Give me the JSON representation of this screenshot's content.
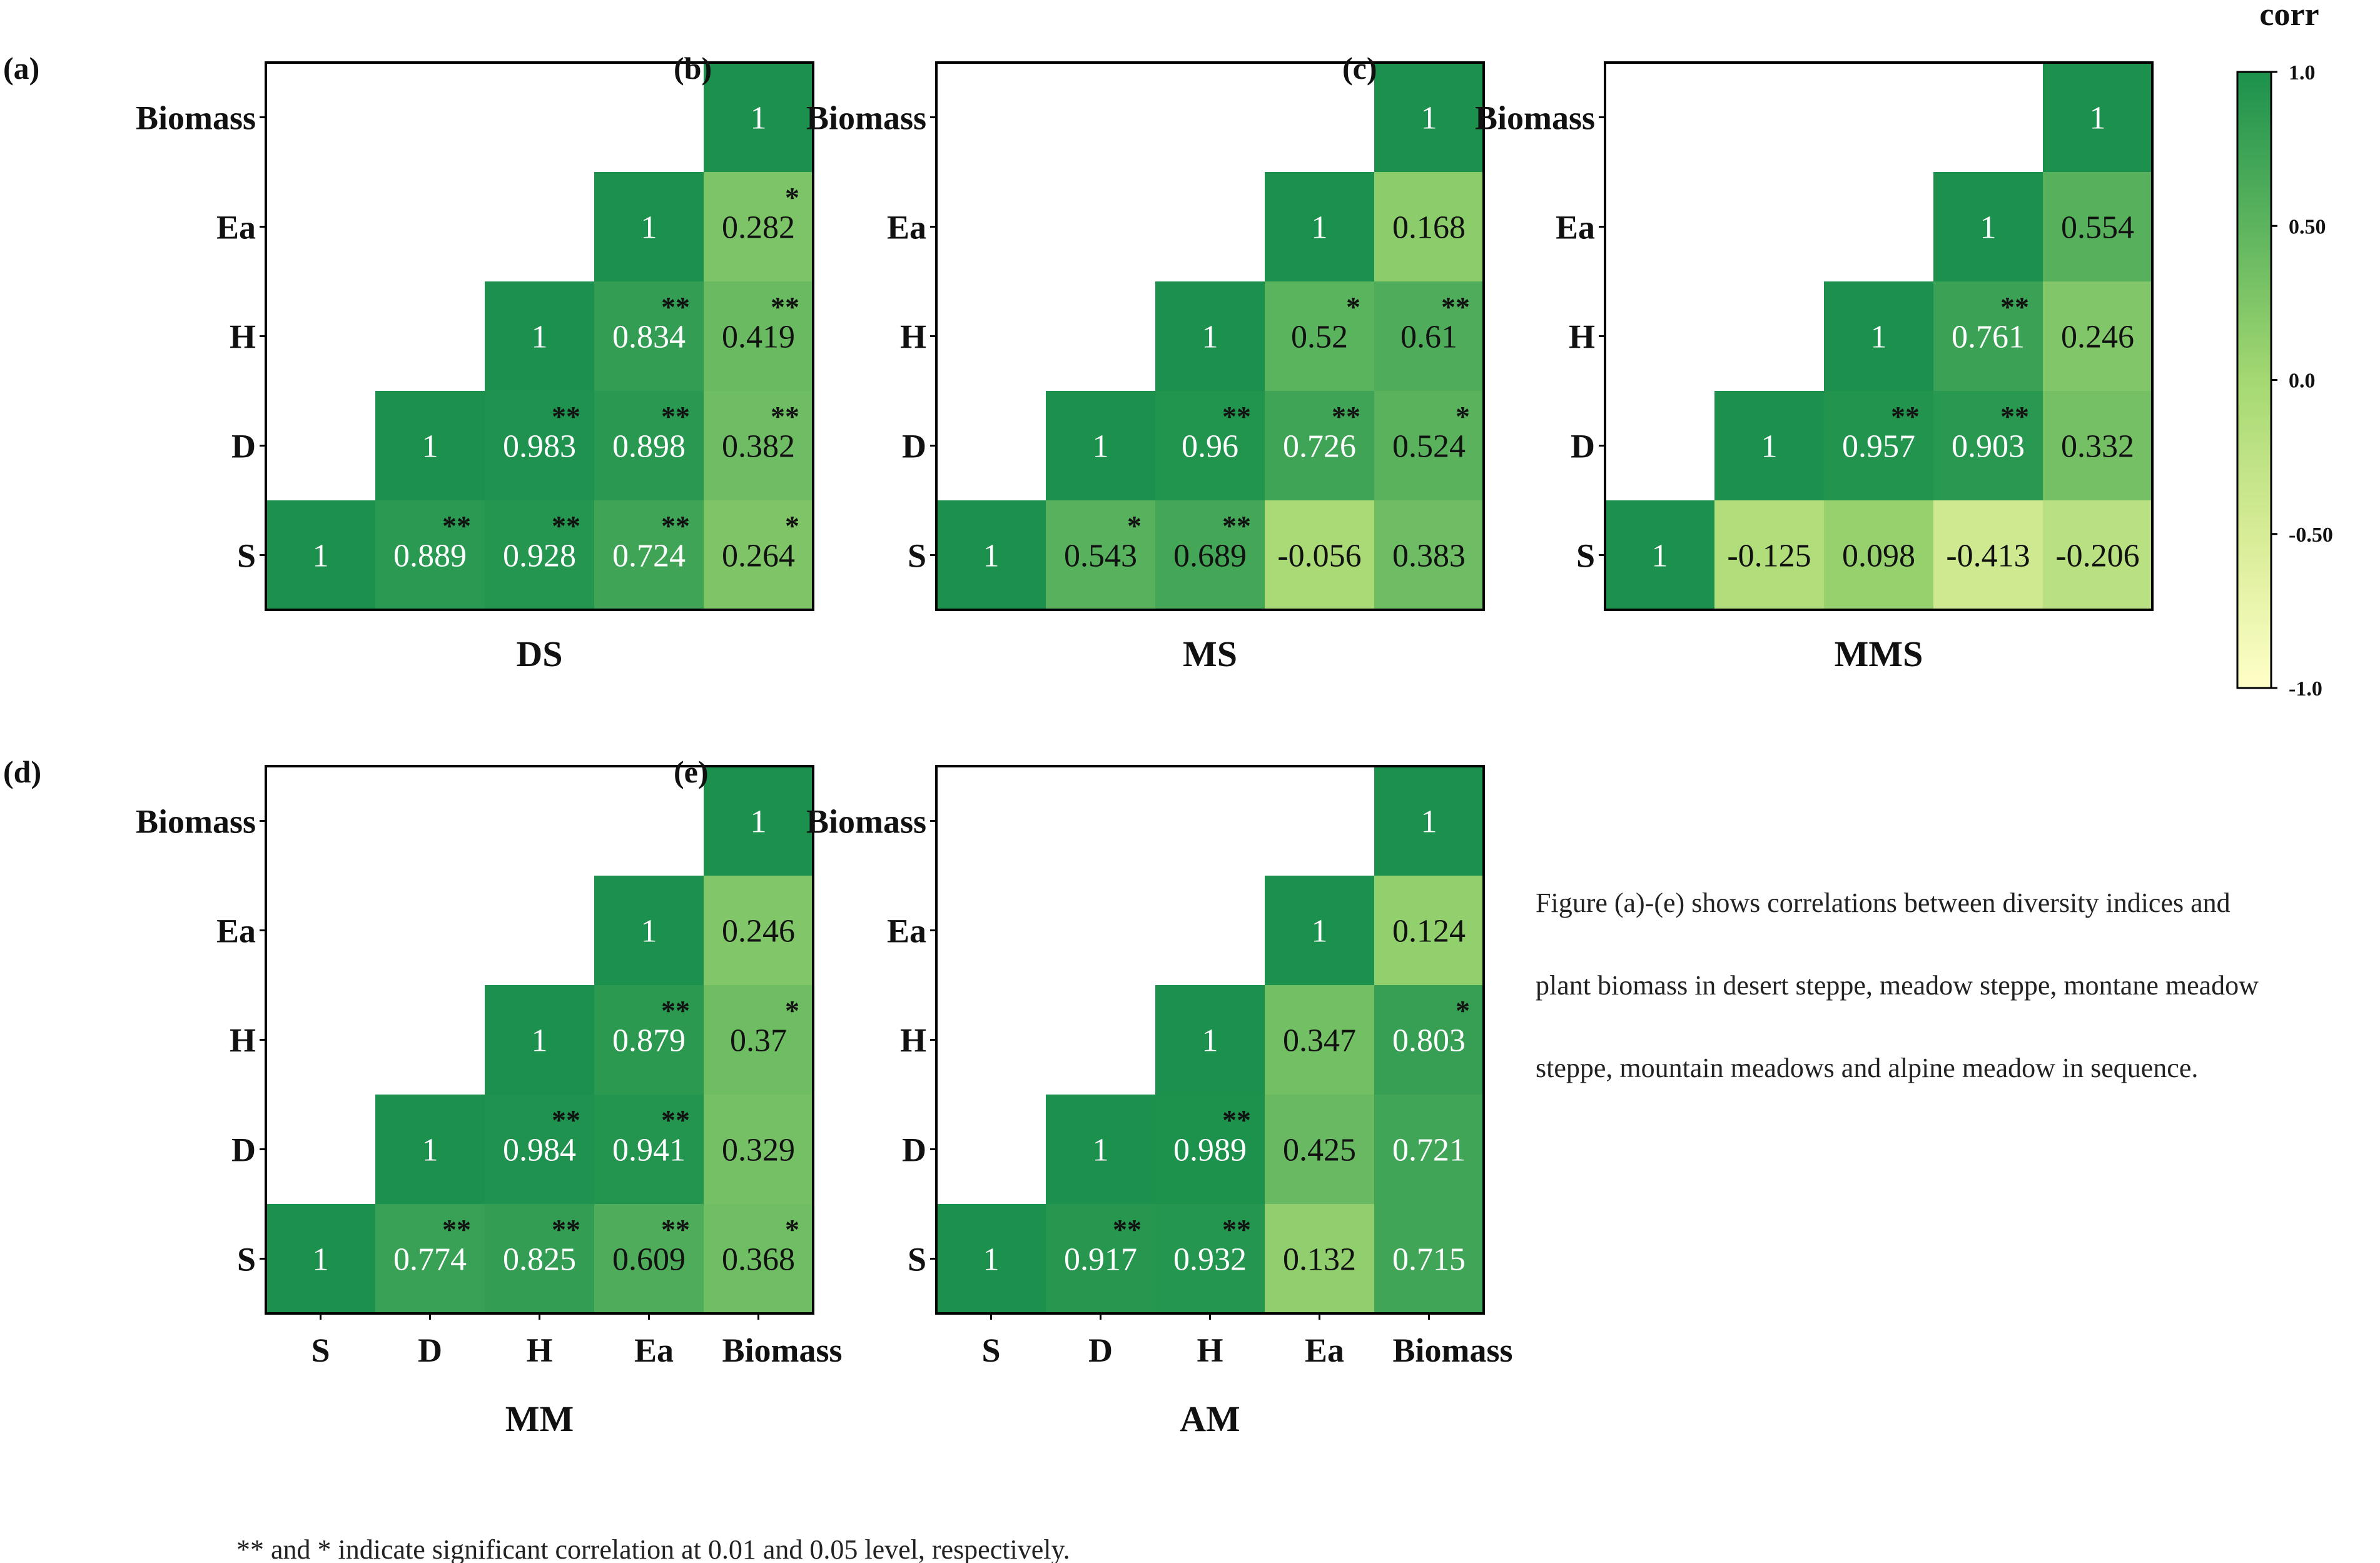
{
  "colors": {
    "scale_high": "#1c914d",
    "scale_mid": "#7cc35f",
    "scale_low": "#ffffc7",
    "border": "#000000",
    "text_dark": "#111111",
    "text_light": "#ffffff"
  },
  "chart_data": {
    "type": "heatmap",
    "variables": [
      "S",
      "D",
      "H",
      "Ea",
      "Biomass"
    ],
    "x_tick_labels": [
      "S",
      "D",
      "H",
      "Ea",
      "Biomass"
    ],
    "y_tick_labels": [
      "Biomass",
      "Ea",
      "H",
      "D",
      "S"
    ],
    "panels": [
      {
        "label": "(a)",
        "title": "DS",
        "cells": [
          [
            "1",
            "0.889",
            "0.928",
            "0.724",
            "0.264"
          ],
          [
            null,
            "1",
            "0.983",
            "0.898",
            "0.382"
          ],
          [
            null,
            null,
            "1",
            "0.834",
            "0.419"
          ],
          [
            null,
            null,
            null,
            "1",
            "0.282"
          ],
          [
            null,
            null,
            null,
            null,
            "1"
          ]
        ],
        "sig": [
          [
            "",
            "**",
            "**",
            "**",
            "*"
          ],
          [
            null,
            "",
            "**",
            "**",
            "**"
          ],
          [
            null,
            null,
            "",
            "**",
            "**"
          ],
          [
            null,
            null,
            null,
            "",
            "*"
          ],
          [
            null,
            null,
            null,
            null,
            ""
          ]
        ]
      },
      {
        "label": "(b)",
        "title": "MS",
        "cells": [
          [
            "1",
            "0.543",
            "0.689",
            "-0.056",
            "0.383"
          ],
          [
            null,
            "1",
            "0.96",
            "0.726",
            "0.524"
          ],
          [
            null,
            null,
            "1",
            "0.52",
            "0.61"
          ],
          [
            null,
            null,
            null,
            "1",
            "0.168"
          ],
          [
            null,
            null,
            null,
            null,
            "1"
          ]
        ],
        "sig": [
          [
            "",
            "*",
            "**",
            "",
            ""
          ],
          [
            null,
            "",
            "**",
            "**",
            "*"
          ],
          [
            null,
            null,
            "",
            "*",
            "**"
          ],
          [
            null,
            null,
            null,
            "",
            ""
          ],
          [
            null,
            null,
            null,
            null,
            ""
          ]
        ]
      },
      {
        "label": "(c)",
        "title": "MMS",
        "cells": [
          [
            "1",
            "-0.125",
            "0.098",
            "-0.413",
            "-0.206"
          ],
          [
            null,
            "1",
            "0.957",
            "0.903",
            "0.332"
          ],
          [
            null,
            null,
            "1",
            "0.761",
            "0.246"
          ],
          [
            null,
            null,
            null,
            "1",
            "0.554"
          ],
          [
            null,
            null,
            null,
            null,
            "1"
          ]
        ],
        "sig": [
          [
            "",
            "",
            "",
            "",
            ""
          ],
          [
            null,
            "",
            "**",
            "**",
            ""
          ],
          [
            null,
            null,
            "",
            "**",
            ""
          ],
          [
            null,
            null,
            null,
            "",
            ""
          ],
          [
            null,
            null,
            null,
            null,
            ""
          ]
        ]
      },
      {
        "label": "(d)",
        "title": "MM",
        "cells": [
          [
            "1",
            "0.774",
            "0.825",
            "0.609",
            "0.368"
          ],
          [
            null,
            "1",
            "0.984",
            "0.941",
            "0.329"
          ],
          [
            null,
            null,
            "1",
            "0.879",
            "0.37"
          ],
          [
            null,
            null,
            null,
            "1",
            "0.246"
          ],
          [
            null,
            null,
            null,
            null,
            "1"
          ]
        ],
        "sig": [
          [
            "",
            "**",
            "**",
            "**",
            "*"
          ],
          [
            null,
            "",
            "**",
            "**",
            ""
          ],
          [
            null,
            null,
            "",
            "**",
            "*"
          ],
          [
            null,
            null,
            null,
            "",
            ""
          ],
          [
            null,
            null,
            null,
            null,
            ""
          ]
        ]
      },
      {
        "label": "(e)",
        "title": "AM",
        "cells": [
          [
            "1",
            "0.917",
            "0.932",
            "0.132",
            "0.715"
          ],
          [
            null,
            "1",
            "0.989",
            "0.425",
            "0.721"
          ],
          [
            null,
            null,
            "1",
            "0.347",
            "0.803"
          ],
          [
            null,
            null,
            null,
            "1",
            "0.124"
          ],
          [
            null,
            null,
            null,
            null,
            "1"
          ]
        ],
        "sig": [
          [
            "",
            "**",
            "**",
            "",
            ""
          ],
          [
            null,
            "",
            "**",
            "",
            ""
          ],
          [
            null,
            null,
            "",
            "",
            "*"
          ],
          [
            null,
            null,
            null,
            "",
            ""
          ],
          [
            null,
            null,
            null,
            null,
            ""
          ]
        ]
      }
    ],
    "colorbar": {
      "title": "corr",
      "range": [
        -1.0,
        1.0
      ],
      "tick_labels": [
        "1.0",
        "0.50",
        "0.0",
        "-0.50",
        "-1.0"
      ]
    },
    "caption": {
      "line1": "Figure (a)-(e) shows correlations between diversity indices and",
      "line2": "plant biomass in desert steppe, meadow steppe, montane meadow",
      "line3": "steppe, mountain meadows and alpine meadow in sequence."
    },
    "footnote": "** and * indicate significant correlation at 0.01 and 0.05 level, respectively."
  }
}
